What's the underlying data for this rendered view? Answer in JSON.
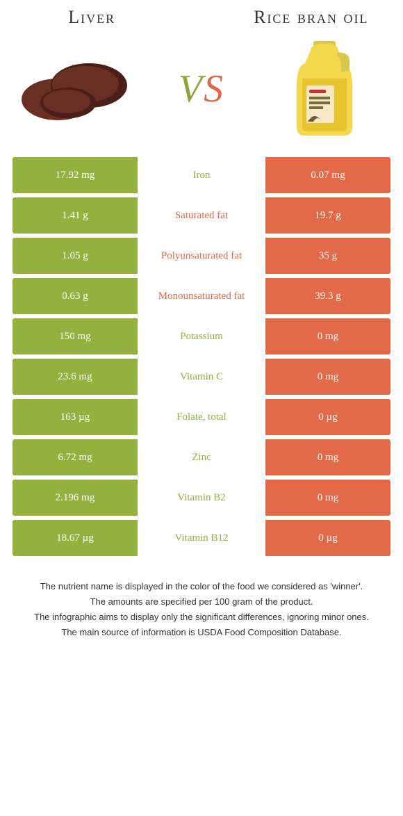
{
  "colors": {
    "left": "#93b13e",
    "right": "#e26a48",
    "mid_bg": "#ffffff",
    "vs_left": "#8fa63a",
    "vs_right": "#e06a47",
    "liver_fill": "#6a2f23",
    "liver_dark": "#4a1f18",
    "bottle_body": "#f2d84a",
    "bottle_liquid": "#e8c530",
    "bottle_cap": "#d9c94a",
    "bottle_label": "#f5e9c8"
  },
  "header": {
    "left_title": "Liver",
    "right_title": "Rice bran oil",
    "vs_v": "V",
    "vs_s": "S"
  },
  "rows": [
    {
      "left": "17.92 mg",
      "label": "Iron",
      "right": "0.07 mg",
      "winner": "left"
    },
    {
      "left": "1.41 g",
      "label": "Saturated fat",
      "right": "19.7 g",
      "winner": "right"
    },
    {
      "left": "1.05 g",
      "label": "Polyunsaturated fat",
      "right": "35 g",
      "winner": "right"
    },
    {
      "left": "0.63 g",
      "label": "Monounsaturated fat",
      "right": "39.3 g",
      "winner": "right"
    },
    {
      "left": "150 mg",
      "label": "Potassium",
      "right": "0 mg",
      "winner": "left"
    },
    {
      "left": "23.6 mg",
      "label": "Vitamin C",
      "right": "0 mg",
      "winner": "left"
    },
    {
      "left": "163 µg",
      "label": "Folate, total",
      "right": "0 µg",
      "winner": "left"
    },
    {
      "left": "6.72 mg",
      "label": "Zinc",
      "right": "0 mg",
      "winner": "left"
    },
    {
      "left": "2.196 mg",
      "label": "Vitamin B2",
      "right": "0 mg",
      "winner": "left"
    },
    {
      "left": "18.67 µg",
      "label": "Vitamin B12",
      "right": "0 µg",
      "winner": "left"
    }
  ],
  "footnotes": [
    "The nutrient name is displayed in the color of the food we considered as 'winner'.",
    "The amounts are specified per 100 gram of the product.",
    "The infographic aims to display only the significant differences, ignoring minor ones.",
    "The main source of information is USDA Food Composition Database."
  ]
}
